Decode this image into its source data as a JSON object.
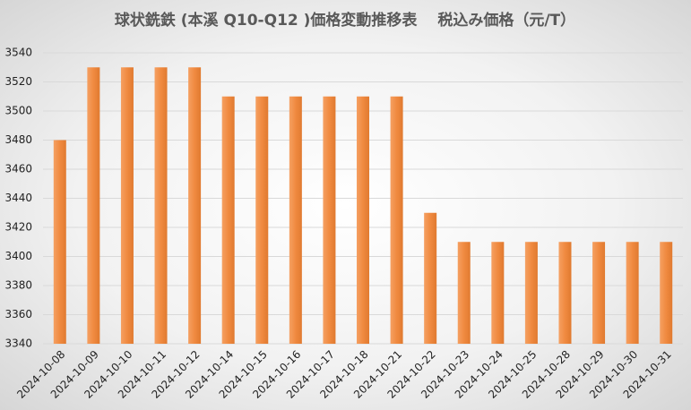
{
  "chart_data": {
    "type": "bar",
    "title": "球状銑鉄 (本溪 Q10-Q12 )価格変動推移表　 税込み価格（元/T）",
    "categories": [
      "2024-10-08",
      "2024-10-09",
      "2024-10-10",
      "2024-10-11",
      "2024-10-12",
      "2024-10-14",
      "2024-10-15",
      "2024-10-16",
      "2024-10-17",
      "2024-10-18",
      "2024-10-21",
      "2024-10-22",
      "2024-10-23",
      "2024-10-24",
      "2024-10-25",
      "2024-10-28",
      "2024-10-29",
      "2024-10-30",
      "2024-10-31"
    ],
    "values": [
      3480,
      3530,
      3530,
      3530,
      3530,
      3510,
      3510,
      3510,
      3510,
      3510,
      3510,
      3430,
      3410,
      3410,
      3410,
      3410,
      3410,
      3410,
      3410
    ],
    "color": "#f08a40",
    "ylim": [
      3340,
      3540
    ],
    "yticks": [
      3340,
      3360,
      3380,
      3400,
      3420,
      3440,
      3460,
      3480,
      3500,
      3520,
      3540
    ],
    "grid": true
  }
}
